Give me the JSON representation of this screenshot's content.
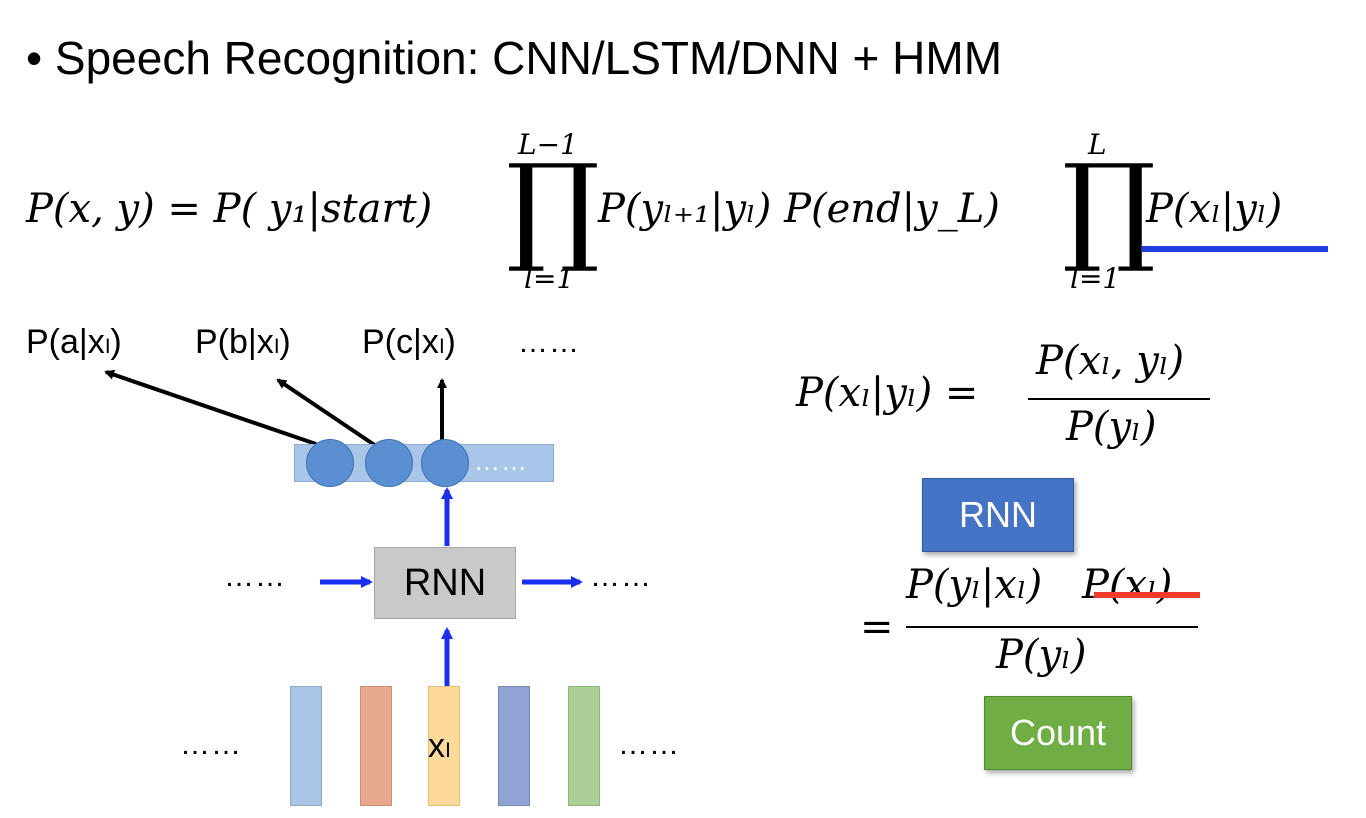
{
  "title": "• Speech Recognition: CNN/LSTM/DNN + HMM",
  "equation": {
    "lhs": "P(x, y) = P( y₁|start)",
    "prod1_top": "L−1",
    "prod1_bottom": "l=1",
    "mid": "P(yₗ₊₁|yₗ) P(end|y_L)",
    "prod2_top": "L",
    "prod2_bottom": "l=1",
    "emission": "P(xₗ|yₗ)",
    "prod_symbol": "∏",
    "underline_color": "#1f3fe0"
  },
  "outputs": [
    "P(a|xₗ)",
    "P(b|xₗ)",
    "P(c|xₗ)"
  ],
  "outputs_more": "……",
  "layer_more": "……",
  "rnn_label": "RNN",
  "seq_left": "……",
  "seq_right": "……",
  "frames_left": "……",
  "frames_right": "……",
  "frame_label": "xₗ",
  "frame_colors": [
    "#a9c4e4",
    "#e8a98f",
    "#fbd99a",
    "#8fa3d5",
    "#a9cf95"
  ],
  "bayes": {
    "lhs": "P(xₗ|yₗ) =",
    "num1": "P(xₗ, yₗ)",
    "den1": "P(yₗ)",
    "eq2": "=",
    "num2": "P(yₗ|xₗ)",
    "num2_struck": "P(xₗ)",
    "den2": "P(yₗ)",
    "strike_color": "#ee3b2b"
  },
  "rnn_badge": "RNN",
  "count_badge": "Count"
}
